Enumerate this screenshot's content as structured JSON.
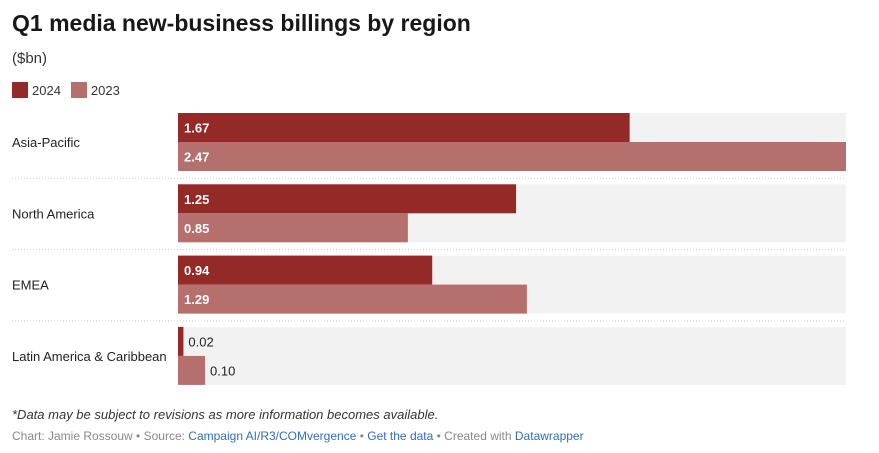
{
  "chart_data": {
    "type": "bar",
    "title": "Q1 media new-business billings by region",
    "subtitle": "($bn)",
    "categories": [
      "Asia-Pacific",
      "North America",
      "EMEA",
      "Latin America & Caribbean"
    ],
    "series": [
      {
        "name": "2024",
        "color": "#942a27",
        "values": [
          1.67,
          1.25,
          0.94,
          0.02
        ],
        "labels": [
          "1.67",
          "1.25",
          "0.94",
          "0.02"
        ]
      },
      {
        "name": "2023",
        "color": "#b56f6c",
        "values": [
          2.47,
          0.85,
          1.29,
          0.1
        ],
        "labels": [
          "2.47",
          "0.85",
          "1.29",
          "0.10"
        ]
      }
    ],
    "xlim": [
      0,
      2.47
    ],
    "legend": "top-left",
    "orientation": "horizontal"
  },
  "footer": {
    "note": "*Data may be subject to revisions as more information becomes available.",
    "chart_by": "Chart: Jamie Rossouw",
    "source_prefix": "Source:",
    "source": "Campaign AI/R3/COMvergence",
    "get_data": "Get the data",
    "created_with": "Created with",
    "datawrapper": "Datawrapper",
    "sep": " • "
  }
}
